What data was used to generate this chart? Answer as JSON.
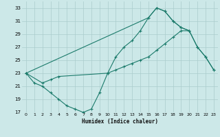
{
  "xlabel": "Humidex (Indice chaleur)",
  "bg_color": "#cce8e8",
  "grid_color": "#aacccc",
  "line_color": "#1a7a6a",
  "ylim": [
    17,
    34
  ],
  "xlim": [
    -0.5,
    23.5
  ],
  "yticks": [
    17,
    19,
    21,
    23,
    25,
    27,
    29,
    31,
    33
  ],
  "xticks": [
    0,
    1,
    2,
    3,
    4,
    5,
    6,
    7,
    8,
    9,
    10,
    11,
    12,
    13,
    14,
    15,
    16,
    17,
    18,
    19,
    20,
    21,
    22,
    23
  ],
  "line1_x": [
    0,
    1,
    2,
    3,
    4,
    5,
    6,
    7,
    8,
    9,
    10,
    11,
    12,
    13,
    14,
    15,
    16,
    17,
    18,
    19,
    20
  ],
  "line1_y": [
    23,
    21.5,
    21,
    20,
    19,
    18,
    17.5,
    17,
    17.5,
    20,
    23,
    25.5,
    27,
    28,
    29.5,
    31.5,
    33,
    32.5,
    31,
    30,
    29.5
  ],
  "line2_x": [
    0,
    2,
    3,
    4,
    10,
    11,
    12,
    13,
    14,
    15,
    16,
    17,
    18,
    19,
    20,
    21,
    22,
    23
  ],
  "line2_y": [
    23,
    21.5,
    22,
    22.5,
    23,
    23.5,
    24,
    24.5,
    25,
    25.5,
    26.5,
    27.5,
    28.5,
    29.5,
    29.5,
    27,
    25.5,
    23.5
  ],
  "line3_x": [
    0,
    15,
    16,
    17,
    18,
    19,
    20,
    21,
    22,
    23
  ],
  "line3_y": [
    23,
    31.5,
    33,
    32.5,
    31,
    30,
    29.5,
    27,
    25.5,
    23.5
  ]
}
